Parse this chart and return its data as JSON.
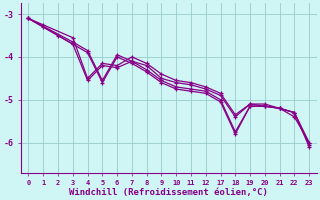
{
  "xlabel": "Windchill (Refroidissement éolien,°C)",
  "background_color": "#cff5f5",
  "line_color": "#880088",
  "grid_color": "#99cccc",
  "xlim": [
    -0.5,
    19.5
  ],
  "ylim": [
    -6.7,
    -2.75
  ],
  "yticks": [
    -3,
    -4,
    -5,
    -6
  ],
  "xtick_positions": [
    0,
    1,
    2,
    3,
    4,
    5,
    6,
    7,
    8,
    9,
    10,
    11,
    12,
    13,
    14,
    15,
    16,
    17,
    18,
    19
  ],
  "xtick_labels": [
    "0",
    "1",
    "2",
    "3",
    "4",
    "5",
    "6",
    "7",
    "8",
    "9",
    "10",
    "11",
    "12",
    "17",
    "18",
    "19",
    "20",
    "21",
    "22",
    "23"
  ],
  "lines": [
    {
      "x": [
        0,
        1,
        3,
        4,
        5,
        6,
        7,
        8,
        9,
        10,
        11,
        12,
        13,
        14,
        15,
        16,
        17,
        18,
        19
      ],
      "y": [
        -3.1,
        -3.25,
        -3.55,
        -4.5,
        -4.15,
        -4.2,
        -4.0,
        -4.15,
        -4.4,
        -4.55,
        -4.6,
        -4.7,
        -4.85,
        -5.35,
        -5.1,
        -5.1,
        -5.2,
        -5.4,
        -6.0
      ]
    },
    {
      "x": [
        0,
        3,
        4,
        5,
        6,
        7,
        8,
        9,
        10,
        11,
        12,
        13,
        14,
        15,
        16,
        17,
        18,
        19
      ],
      "y": [
        -3.1,
        -3.65,
        -3.85,
        -4.55,
        -3.95,
        -4.1,
        -4.3,
        -4.55,
        -4.7,
        -4.75,
        -4.8,
        -5.0,
        -5.75,
        -5.15,
        -5.15,
        -5.2,
        -5.3,
        -6.05
      ]
    },
    {
      "x": [
        0,
        1,
        2,
        3,
        4,
        5,
        6,
        7,
        8,
        9,
        10,
        11,
        12,
        13,
        14,
        15,
        16,
        17,
        18,
        19
      ],
      "y": [
        -3.1,
        -3.3,
        -3.5,
        -3.7,
        -4.55,
        -4.2,
        -4.25,
        -4.1,
        -4.2,
        -4.5,
        -4.6,
        -4.65,
        -4.75,
        -4.9,
        -5.4,
        -5.1,
        -5.15,
        -5.2,
        -5.3,
        -6.0
      ]
    },
    {
      "x": [
        0,
        3,
        4,
        5,
        6,
        7,
        8,
        9,
        10,
        11,
        12,
        13,
        14,
        15,
        16,
        17,
        18,
        19
      ],
      "y": [
        -3.1,
        -3.7,
        -3.9,
        -4.6,
        -4.0,
        -4.15,
        -4.35,
        -4.6,
        -4.75,
        -4.8,
        -4.85,
        -5.05,
        -5.8,
        -5.15,
        -5.15,
        -5.2,
        -5.3,
        -6.1
      ]
    }
  ]
}
